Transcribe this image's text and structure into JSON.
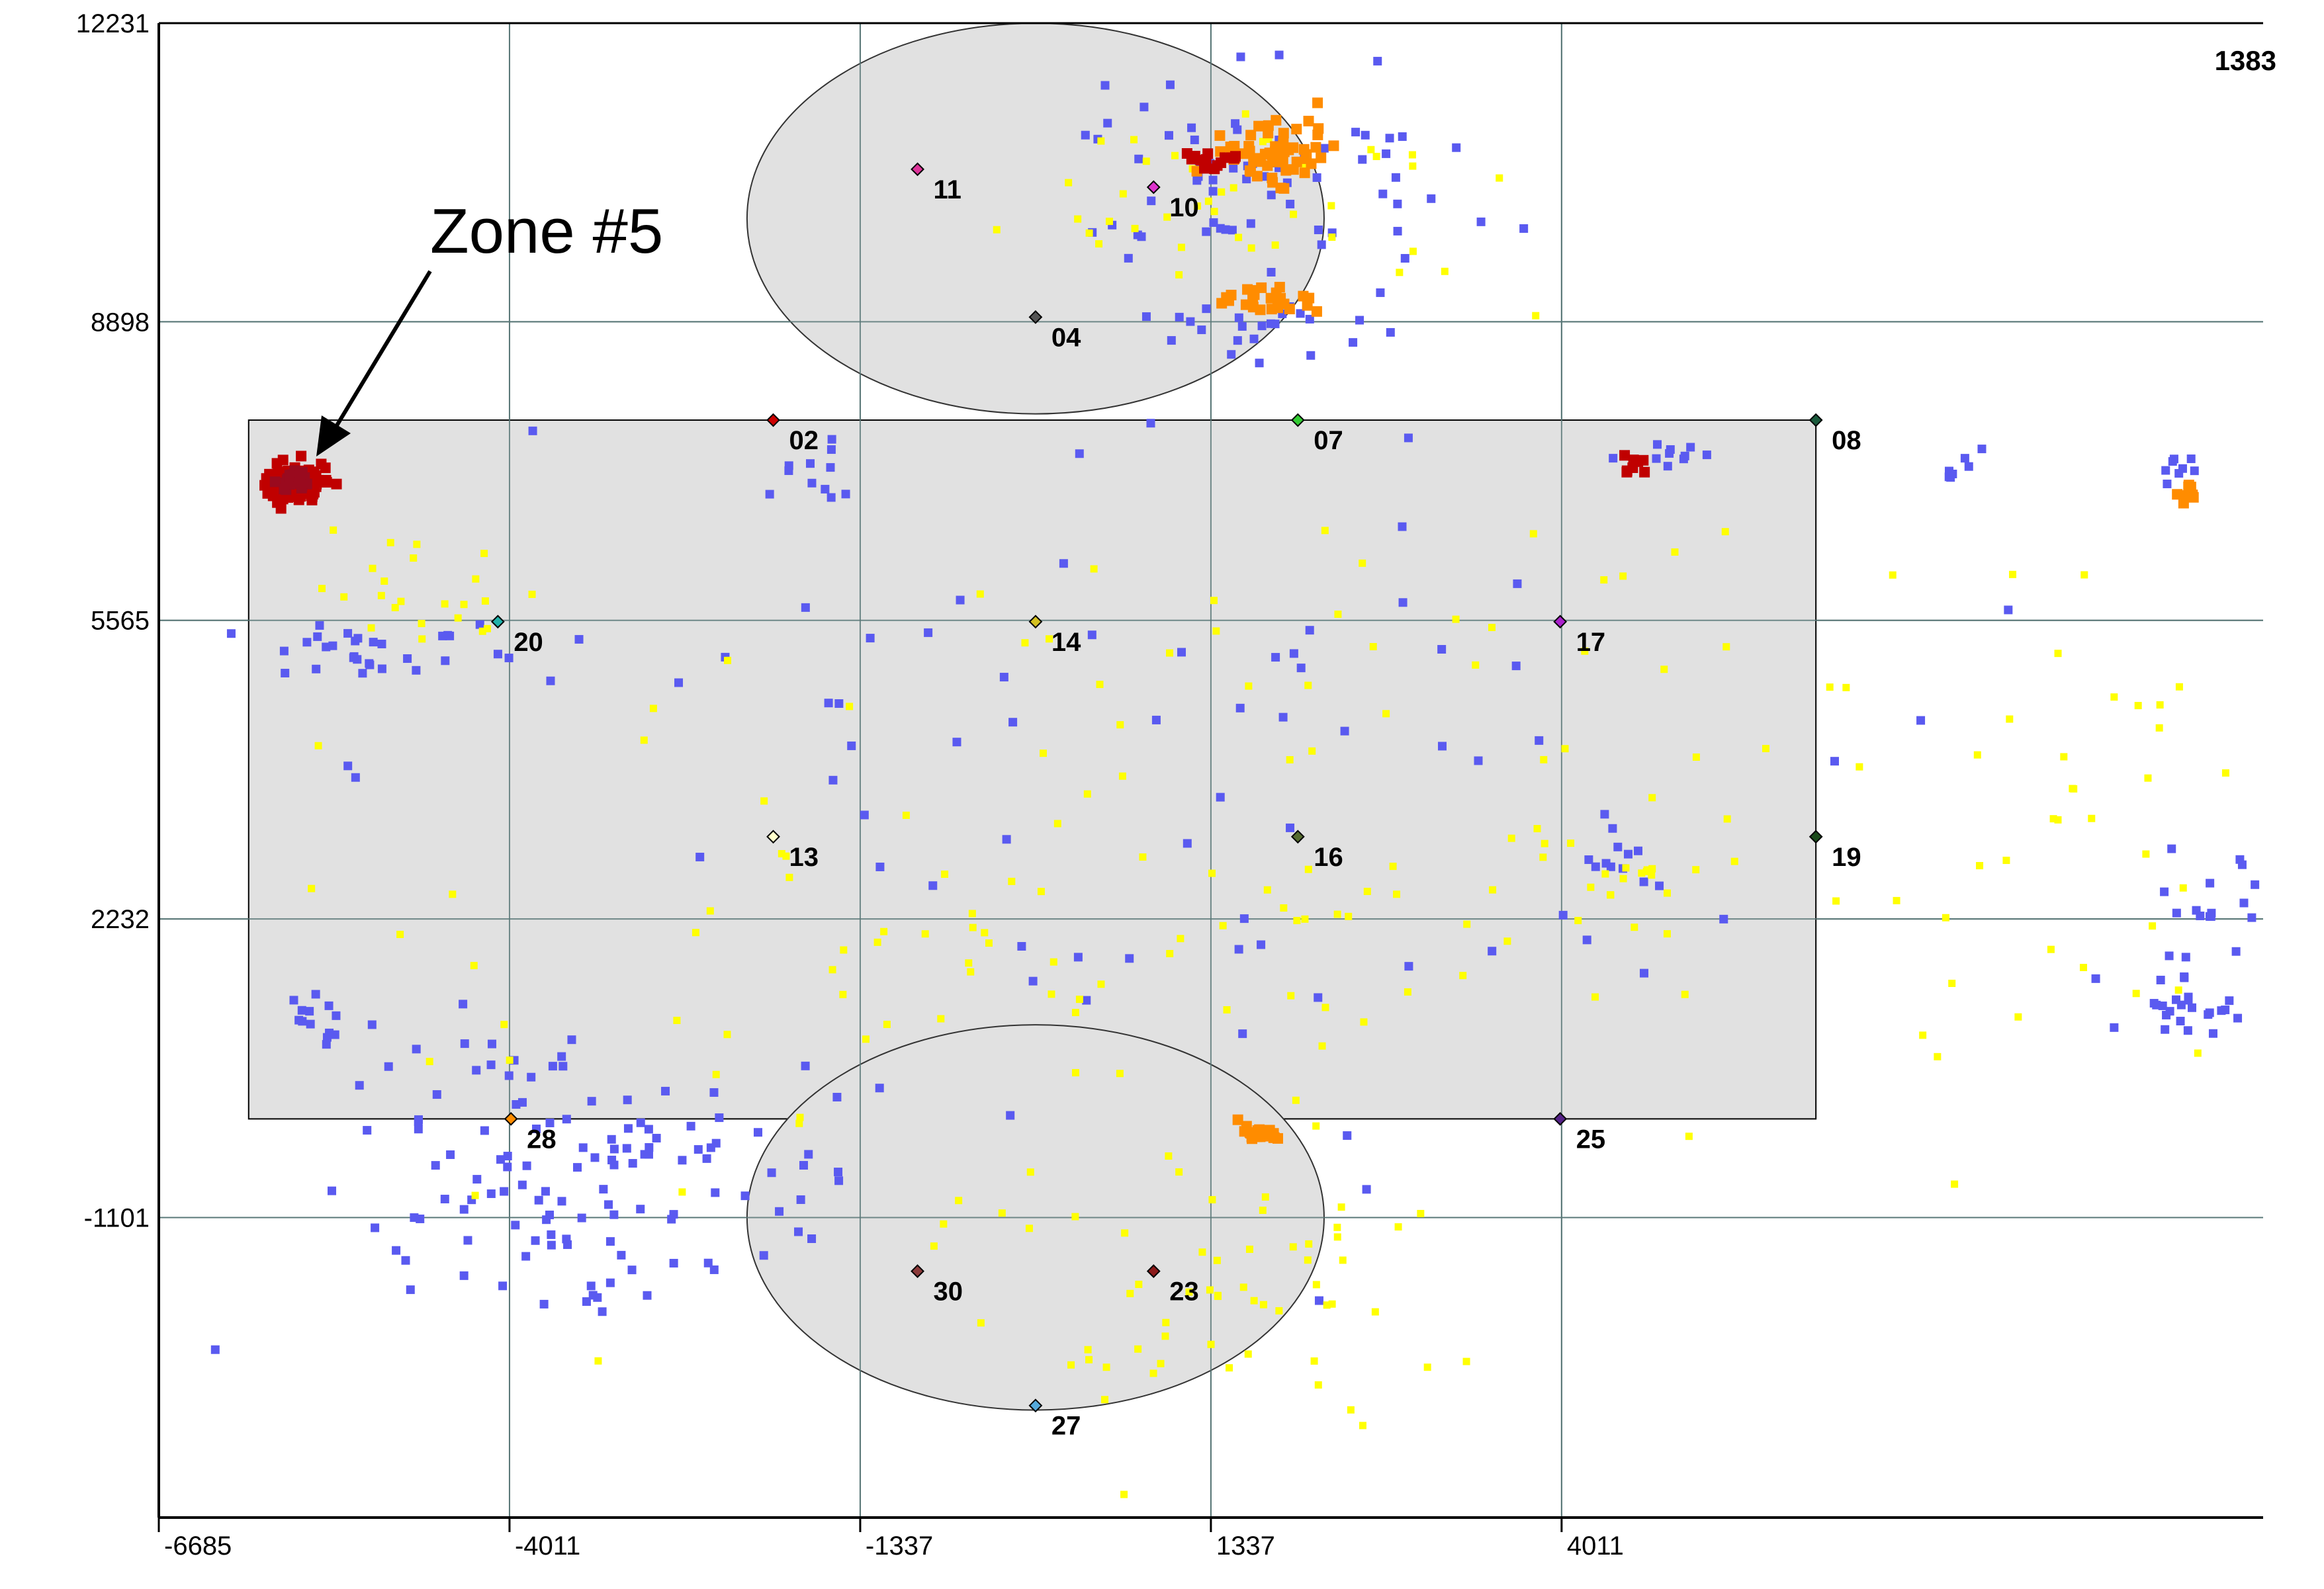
{
  "corner_label": "1383",
  "annotation": {
    "text": "Zone #5"
  },
  "colors": {
    "background": "#ffffff",
    "panel": "#e1e1e1",
    "grid": "#5a7878",
    "axis": "#000000",
    "event_blue": "#5a5af0",
    "event_yellow": "#ffff00",
    "event_orange": "#ff8c00",
    "event_red": "#c00000",
    "event_darkred": "#9a0a1e"
  },
  "chart_data": {
    "type": "scatter",
    "title": "",
    "xlabel": "",
    "ylabel": "",
    "xlim": [
      -6685,
      9360
    ],
    "ylim": [
      -4450,
      12231
    ],
    "x_ticks": [
      -6685,
      -4011,
      -1337,
      1337,
      4011
    ],
    "x_tick_labels": [
      "-6685",
      "-4011",
      "-1337",
      "1337",
      "4011"
    ],
    "y_ticks": [
      12231,
      8898,
      5565,
      2232,
      -1101
    ],
    "y_tick_labels": [
      "12231",
      "8898",
      "5565",
      "2232",
      "-1101"
    ],
    "grid": true,
    "panels": {
      "main_rectangle": {
        "x": [
          -6000,
          5950
        ],
        "y": [
          0,
          7800
        ]
      },
      "top_ellipse": {
        "cx": 0,
        "cy": 10050,
        "rx": 2200,
        "ry": 2180
      },
      "bottom_ellipse": {
        "cx": 0,
        "cy": -1100,
        "rx": 2200,
        "ry": 2150
      }
    },
    "sensors": [
      {
        "id": "02",
        "x": -2000,
        "y": 7800,
        "color": "#cc0000"
      },
      {
        "id": "07",
        "x": 2000,
        "y": 7800,
        "color": "#33cc33"
      },
      {
        "id": "08",
        "x": 5950,
        "y": 7800,
        "color": "#1a5a3c"
      },
      {
        "id": "20",
        "x": -4100,
        "y": 5550,
        "color": "#20b2aa"
      },
      {
        "id": "14",
        "x": 0,
        "y": 5550,
        "color": "#d4c020"
      },
      {
        "id": "17",
        "x": 4000,
        "y": 5550,
        "color": "#aa22cc"
      },
      {
        "id": "13",
        "x": -2000,
        "y": 3150,
        "color": "#ffffcc"
      },
      {
        "id": "16",
        "x": 2000,
        "y": 3150,
        "color": "#556b2f"
      },
      {
        "id": "19",
        "x": 5950,
        "y": 3150,
        "color": "#1a4a1a"
      },
      {
        "id": "28",
        "x": -4000,
        "y": 0,
        "color": "#ff8c00"
      },
      {
        "id": "25",
        "x": 4000,
        "y": 0,
        "color": "#552288"
      },
      {
        "id": "11",
        "x": -900,
        "y": 10600,
        "color": "#dd3399"
      },
      {
        "id": "10",
        "x": 900,
        "y": 10400,
        "color": "#dd33cc"
      },
      {
        "id": "04",
        "x": 0,
        "y": 8950,
        "color": "#555555"
      },
      {
        "id": "30",
        "x": -900,
        "y": -1700,
        "color": "#8b3a3a"
      },
      {
        "id": "23",
        "x": 900,
        "y": -1700,
        "color": "#8b1a1a"
      },
      {
        "id": "27",
        "x": 0,
        "y": -3200,
        "color": "#55aadd"
      }
    ],
    "series": [
      {
        "color": "blue",
        "count": 430
      },
      {
        "color": "yellow",
        "count": 310
      },
      {
        "color": "orange",
        "count": 120
      },
      {
        "color": "red",
        "count": 110
      },
      {
        "color": "darkred",
        "count": 40
      }
    ]
  }
}
